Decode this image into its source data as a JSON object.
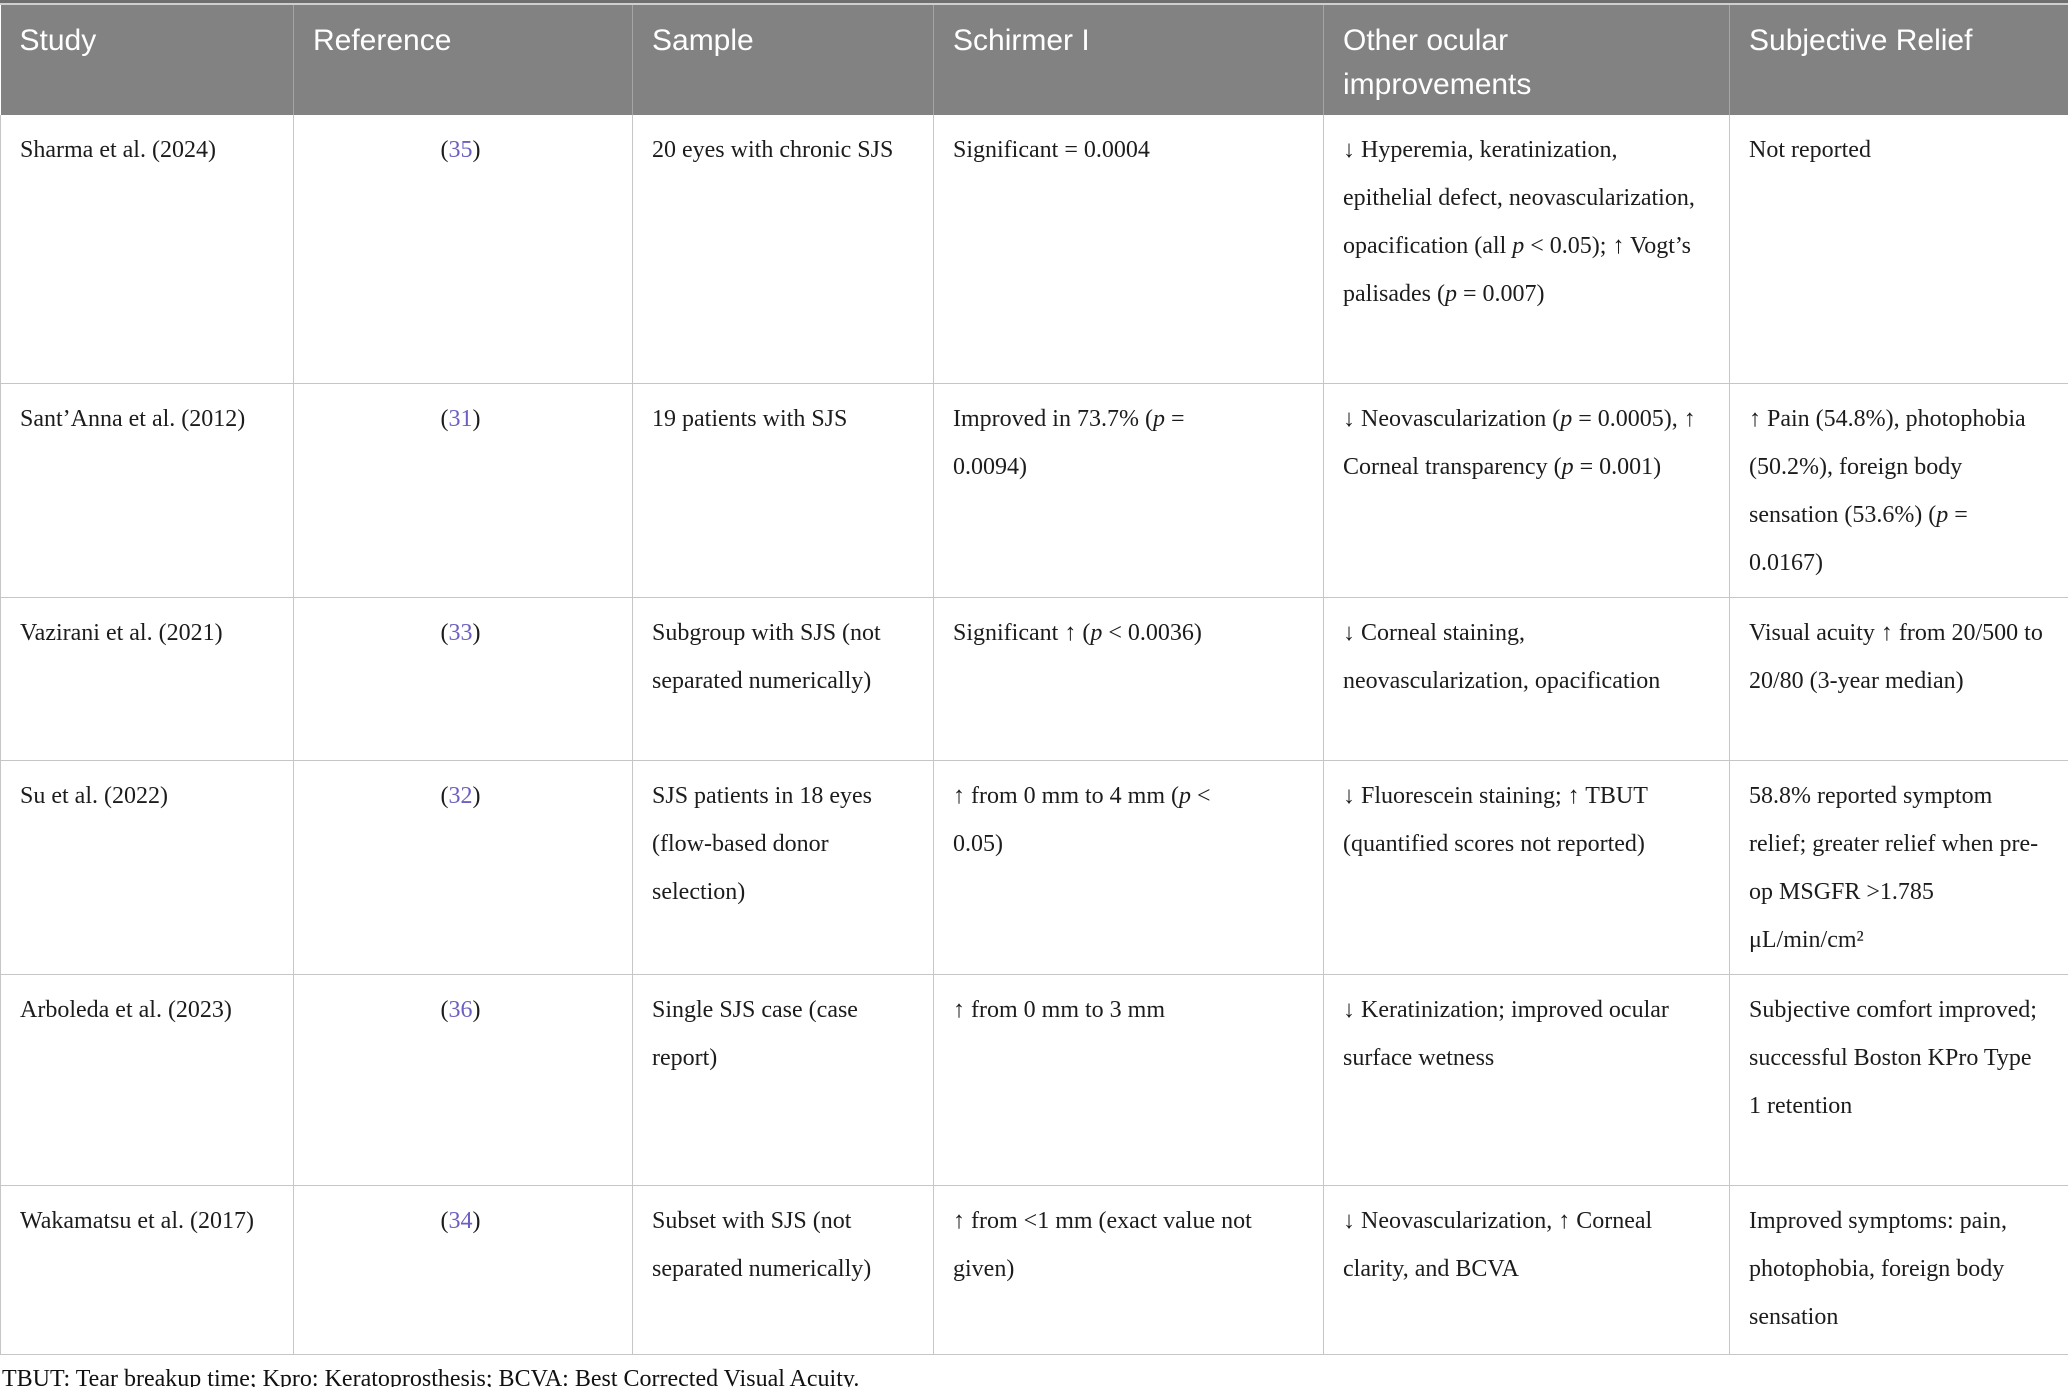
{
  "colors": {
    "header_bg": "#828282",
    "header_text": "#ffffff",
    "reference_accent": "#6b60c2",
    "grid_line": "#c6c6c6"
  },
  "table": {
    "columns": [
      {
        "key": "study",
        "label": "Study"
      },
      {
        "key": "reference",
        "label": "Reference"
      },
      {
        "key": "sample",
        "label": "Sample"
      },
      {
        "key": "schirmer",
        "label": "Schirmer I"
      },
      {
        "key": "other",
        "label": "Other ocular improvements"
      },
      {
        "key": "relief",
        "label": "Subjective Relief"
      }
    ],
    "rows": [
      {
        "study": "Sharma et al. (2024)",
        "reference": "(35)",
        "sample": "20 eyes with chronic SJS",
        "schirmer": "Significant = 0.0004",
        "other": "↓ Hyperemia, keratinization, epithelial defect, neovascularization, opacification (all p < 0.05); ↑ Vogt’s palisades (p = 0.007)",
        "relief": "Not reported"
      },
      {
        "study": "Sant’Anna et al. (2012)",
        "reference": "(31)",
        "sample": "19 patients with SJS",
        "schirmer": "Improved in 73.7% (p = 0.0094)",
        "other": "↓ Neovascularization (p = 0.0005), ↑ Corneal transparency (p = 0.001)",
        "relief": "↑ Pain (54.8%), photophobia (50.2%), foreign body sensation (53.6%) (p = 0.0167)"
      },
      {
        "study": "Vazirani et al. (2021)",
        "reference": "(33)",
        "sample": "Subgroup with SJS (not separated numerically)",
        "schirmer": "Significant ↑ (p < 0.0036)",
        "other": "↓ Corneal staining, neovascularization, opacification",
        "relief": "Visual acuity ↑ from 20/500 to 20/80 (3-year median)"
      },
      {
        "study": "Su et al. (2022)",
        "reference": "(32)",
        "sample": "SJS patients in 18 eyes (flow-based donor selection)",
        "schirmer": "↑ from 0 mm to 4 mm (p < 0.05)",
        "other": "↓ Fluorescein staining; ↑ TBUT (quantified scores not reported)",
        "relief": "58.8% reported symptom relief; greater relief when pre-op MSGFR >1.785 μL/min/cm²"
      },
      {
        "study": "Arboleda et al. (2023)",
        "reference": "(36)",
        "sample": "Single SJS case (case report)",
        "schirmer": "↑ from 0 mm to 3 mm",
        "other": "↓ Keratinization; improved ocular surface wetness",
        "relief": "Subjective comfort improved; successful Boston KPro Type 1 retention"
      },
      {
        "study": "Wakamatsu et al. (2017)",
        "reference": "(34)",
        "sample": "Subset with SJS (not separated numerically)",
        "schirmer": "↑ from <1 mm (exact value not given)",
        "other": "↓ Neovascularization, ↑ Corneal clarity, and BCVA",
        "relief": "Improved symptoms: pain, photophobia, foreign body sensation"
      }
    ],
    "footnote": "TBUT: Tear breakup time; Kpro: Keratoprosthesis; BCVA: Best Corrected Visual Acuity."
  }
}
